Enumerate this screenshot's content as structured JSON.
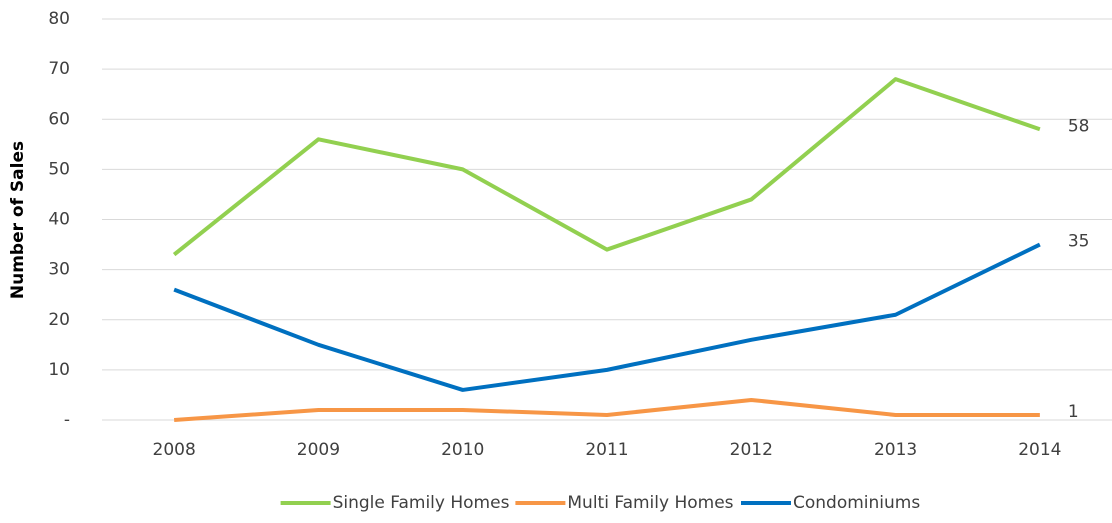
{
  "chart_data": {
    "type": "line",
    "y_label": "Number of Sales",
    "categories": [
      "2008",
      "2009",
      "2010",
      "2011",
      "2012",
      "2013",
      "2014"
    ],
    "series": [
      {
        "name": "Single Family Homes",
        "color": "#92d050",
        "values": [
          33,
          56,
          50,
          34,
          44,
          68,
          58
        ]
      },
      {
        "name": "Multi Family Homes",
        "color": "#f79646",
        "values": [
          0,
          2,
          2,
          1,
          4,
          1,
          1
        ]
      },
      {
        "name": "Condominiums",
        "color": "#0070c0",
        "values": [
          26,
          15,
          6,
          10,
          16,
          21,
          35
        ]
      }
    ],
    "ylim": [
      0,
      80
    ],
    "yticks": [
      {
        "value": 0,
        "label": "-"
      },
      10,
      20,
      30,
      40,
      50,
      60,
      70,
      80
    ],
    "grid": true,
    "legend": "bottom",
    "end_labels": true
  }
}
